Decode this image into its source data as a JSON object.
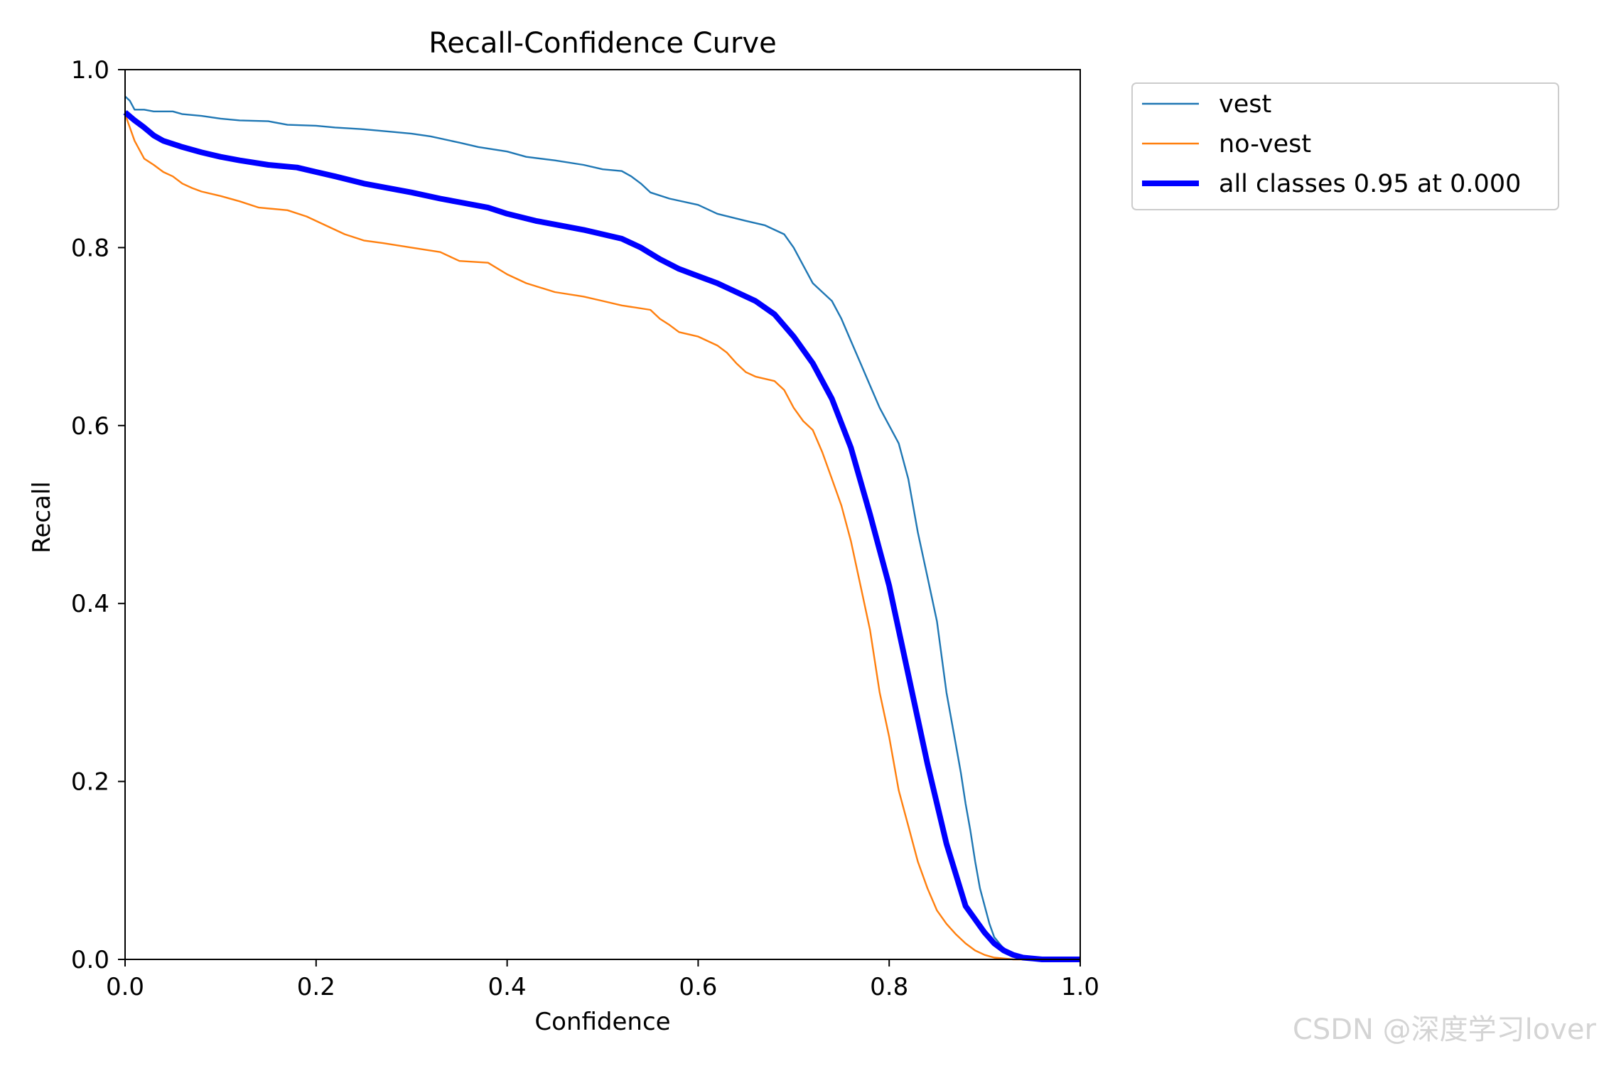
{
  "chart_data": {
    "type": "line",
    "title": "Recall-Confidence Curve",
    "xlabel": "Confidence",
    "ylabel": "Recall",
    "xlim": [
      0,
      1
    ],
    "ylim": [
      0,
      1
    ],
    "xticks": [
      "0.0",
      "0.2",
      "0.4",
      "0.6",
      "0.8",
      "1.0"
    ],
    "yticks": [
      "0.0",
      "0.2",
      "0.4",
      "0.6",
      "0.8",
      "1.0"
    ],
    "grid": false,
    "legend_position": "outside-top-right",
    "series": [
      {
        "name": "vest",
        "color": "#1f77b4",
        "style": "thin",
        "x": [
          0.0,
          0.005,
          0.01,
          0.02,
          0.03,
          0.05,
          0.06,
          0.08,
          0.1,
          0.12,
          0.15,
          0.17,
          0.2,
          0.22,
          0.25,
          0.28,
          0.3,
          0.32,
          0.35,
          0.37,
          0.4,
          0.42,
          0.45,
          0.48,
          0.5,
          0.52,
          0.53,
          0.54,
          0.55,
          0.57,
          0.6,
          0.62,
          0.65,
          0.67,
          0.69,
          0.7,
          0.71,
          0.72,
          0.73,
          0.74,
          0.75,
          0.76,
          0.77,
          0.78,
          0.79,
          0.8,
          0.81,
          0.82,
          0.83,
          0.84,
          0.85,
          0.86,
          0.87,
          0.875,
          0.88,
          0.885,
          0.89,
          0.895,
          0.9,
          0.905,
          0.91,
          0.92,
          0.93,
          0.94,
          0.95,
          0.96,
          0.98,
          1.0
        ],
        "y": [
          0.97,
          0.965,
          0.955,
          0.955,
          0.953,
          0.953,
          0.95,
          0.948,
          0.945,
          0.943,
          0.942,
          0.938,
          0.937,
          0.935,
          0.933,
          0.93,
          0.928,
          0.925,
          0.918,
          0.913,
          0.908,
          0.902,
          0.898,
          0.893,
          0.888,
          0.886,
          0.88,
          0.872,
          0.862,
          0.855,
          0.848,
          0.838,
          0.83,
          0.825,
          0.815,
          0.8,
          0.78,
          0.76,
          0.75,
          0.74,
          0.72,
          0.695,
          0.67,
          0.645,
          0.62,
          0.6,
          0.58,
          0.54,
          0.48,
          0.43,
          0.38,
          0.3,
          0.24,
          0.21,
          0.175,
          0.145,
          0.11,
          0.08,
          0.06,
          0.04,
          0.025,
          0.012,
          0.005,
          0.002,
          0.001,
          0.0,
          0.0,
          0.0
        ]
      },
      {
        "name": "no-vest",
        "color": "#ff7f0e",
        "style": "thin",
        "x": [
          0.0,
          0.005,
          0.01,
          0.02,
          0.03,
          0.04,
          0.05,
          0.06,
          0.07,
          0.08,
          0.1,
          0.12,
          0.14,
          0.17,
          0.19,
          0.21,
          0.23,
          0.25,
          0.27,
          0.3,
          0.33,
          0.35,
          0.38,
          0.4,
          0.42,
          0.45,
          0.48,
          0.5,
          0.52,
          0.55,
          0.56,
          0.57,
          0.58,
          0.6,
          0.62,
          0.63,
          0.64,
          0.65,
          0.66,
          0.68,
          0.69,
          0.7,
          0.71,
          0.72,
          0.73,
          0.74,
          0.75,
          0.76,
          0.77,
          0.78,
          0.79,
          0.8,
          0.81,
          0.82,
          0.83,
          0.84,
          0.85,
          0.86,
          0.87,
          0.88,
          0.89,
          0.9,
          0.91,
          0.92,
          0.93,
          0.94,
          0.95
        ],
        "y": [
          0.95,
          0.935,
          0.92,
          0.9,
          0.893,
          0.885,
          0.88,
          0.872,
          0.867,
          0.863,
          0.858,
          0.852,
          0.845,
          0.842,
          0.835,
          0.825,
          0.815,
          0.808,
          0.805,
          0.8,
          0.795,
          0.785,
          0.783,
          0.77,
          0.76,
          0.75,
          0.745,
          0.74,
          0.735,
          0.73,
          0.72,
          0.713,
          0.705,
          0.7,
          0.69,
          0.682,
          0.67,
          0.66,
          0.655,
          0.65,
          0.64,
          0.62,
          0.605,
          0.595,
          0.57,
          0.54,
          0.51,
          0.47,
          0.42,
          0.37,
          0.3,
          0.25,
          0.19,
          0.15,
          0.11,
          0.08,
          0.055,
          0.04,
          0.028,
          0.018,
          0.01,
          0.005,
          0.002,
          0.001,
          0.0,
          0.0,
          0.0
        ]
      },
      {
        "name": "all classes 0.95 at 0.000",
        "color": "#0000ff",
        "style": "thick",
        "x": [
          0.0,
          0.01,
          0.02,
          0.03,
          0.04,
          0.06,
          0.08,
          0.1,
          0.12,
          0.15,
          0.18,
          0.2,
          0.22,
          0.25,
          0.28,
          0.3,
          0.33,
          0.35,
          0.38,
          0.4,
          0.43,
          0.45,
          0.48,
          0.5,
          0.52,
          0.54,
          0.56,
          0.58,
          0.6,
          0.62,
          0.64,
          0.66,
          0.68,
          0.7,
          0.72,
          0.74,
          0.76,
          0.78,
          0.8,
          0.82,
          0.84,
          0.86,
          0.88,
          0.9,
          0.91,
          0.92,
          0.93,
          0.94,
          0.95,
          0.96,
          0.98,
          1.0
        ],
        "y": [
          0.952,
          0.943,
          0.935,
          0.926,
          0.92,
          0.913,
          0.907,
          0.902,
          0.898,
          0.893,
          0.89,
          0.885,
          0.88,
          0.872,
          0.866,
          0.862,
          0.855,
          0.851,
          0.845,
          0.838,
          0.83,
          0.826,
          0.82,
          0.815,
          0.81,
          0.8,
          0.787,
          0.776,
          0.768,
          0.76,
          0.75,
          0.74,
          0.725,
          0.7,
          0.67,
          0.63,
          0.575,
          0.5,
          0.42,
          0.32,
          0.22,
          0.13,
          0.06,
          0.03,
          0.018,
          0.01,
          0.005,
          0.002,
          0.001,
          0.0,
          0.0,
          0.0
        ]
      }
    ]
  },
  "watermark": "CSDN @深度学习lover"
}
